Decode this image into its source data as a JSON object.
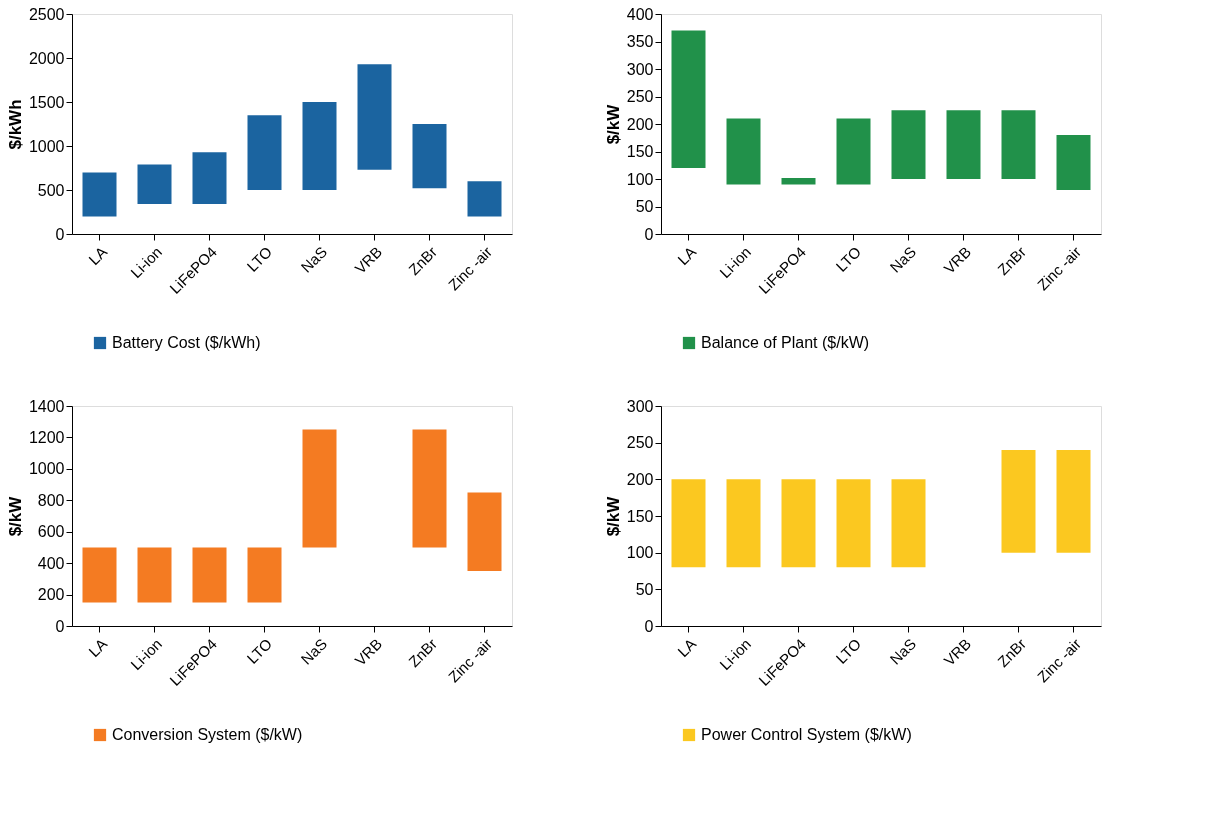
{
  "chart_data": [
    {
      "type": "bar",
      "categories": [
        "LA",
        "Li-ion",
        "LiFePO4",
        "LTO",
        "NaS",
        "VRB",
        "ZnBr",
        "Zinc -air"
      ],
      "ylabel": "$/kWh",
      "ylim": [
        0,
        2500
      ],
      "yticks": [
        0,
        500,
        1000,
        1500,
        2000,
        2500
      ],
      "grid": false,
      "legend": "bottom",
      "series": [
        {
          "name": "Battery Cost ($/kWh)",
          "color": "#1b64a0",
          "base": [
            200,
            340,
            340,
            500,
            500,
            730,
            520,
            200
          ],
          "values": [
            500,
            450,
            590,
            850,
            1000,
            1200,
            730,
            400
          ]
        }
      ]
    },
    {
      "type": "bar",
      "categories": [
        "LA",
        "Li-ion",
        "LiFePO4",
        "LTO",
        "NaS",
        "VRB",
        "ZnBr",
        "Zinc -air"
      ],
      "ylabel": "$/kW",
      "ylim": [
        0,
        400
      ],
      "yticks": [
        0,
        50,
        100,
        150,
        200,
        250,
        300,
        350,
        400
      ],
      "grid": false,
      "legend": "bottom",
      "series": [
        {
          "name": "Balance of Plant ($/kW)",
          "color": "#21914a",
          "base": [
            120,
            90,
            90,
            90,
            100,
            100,
            100,
            80
          ],
          "values": [
            250,
            120,
            12,
            120,
            125,
            125,
            125,
            100
          ]
        }
      ]
    },
    {
      "type": "bar",
      "categories": [
        "LA",
        "Li-ion",
        "LiFePO4",
        "LTO",
        "NaS",
        "VRB",
        "ZnBr",
        "Zinc -air"
      ],
      "ylabel": "$/kW",
      "ylim": [
        0,
        1400
      ],
      "yticks": [
        0,
        200,
        400,
        600,
        800,
        1000,
        1200,
        1400
      ],
      "grid": false,
      "legend": "bottom",
      "series": [
        {
          "name": "Conversion System ($/kW)",
          "color": "#f47b22",
          "base": [
            150,
            150,
            150,
            150,
            500,
            null,
            500,
            350
          ],
          "values": [
            350,
            350,
            350,
            350,
            750,
            null,
            750,
            500
          ]
        }
      ]
    },
    {
      "type": "bar",
      "categories": [
        "LA",
        "Li-ion",
        "LiFePO4",
        "LTO",
        "NaS",
        "VRB",
        "ZnBr",
        "Zinc -air"
      ],
      "ylabel": "$/kW",
      "ylim": [
        0,
        300
      ],
      "yticks": [
        0,
        50,
        100,
        150,
        200,
        250,
        300
      ],
      "grid": false,
      "legend": "bottom",
      "series": [
        {
          "name": "Power Control System ($/kW)",
          "color": "#fbc820",
          "base": [
            80,
            80,
            80,
            80,
            80,
            null,
            100,
            100
          ],
          "values": [
            120,
            120,
            120,
            120,
            120,
            null,
            140,
            140
          ]
        }
      ]
    }
  ]
}
